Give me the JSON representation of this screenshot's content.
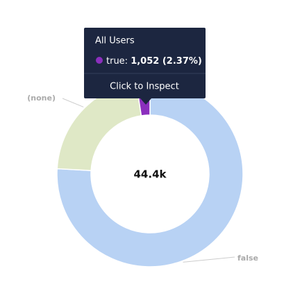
{
  "chart_data": {
    "type": "donut",
    "categories": [
      "false",
      "(none)",
      "true"
    ],
    "values": [
      33700,
      9650,
      1052
    ],
    "colors": [
      "#b8d2f4",
      "#dfe8c6",
      "#8b2fbd"
    ],
    "center_label": "44.4k",
    "tooltip": {
      "title": "All Users",
      "series_label": "true:",
      "value_label": "1,052 (2.37%)",
      "color": "#8b2fbd",
      "action": "Click to Inspect"
    }
  }
}
